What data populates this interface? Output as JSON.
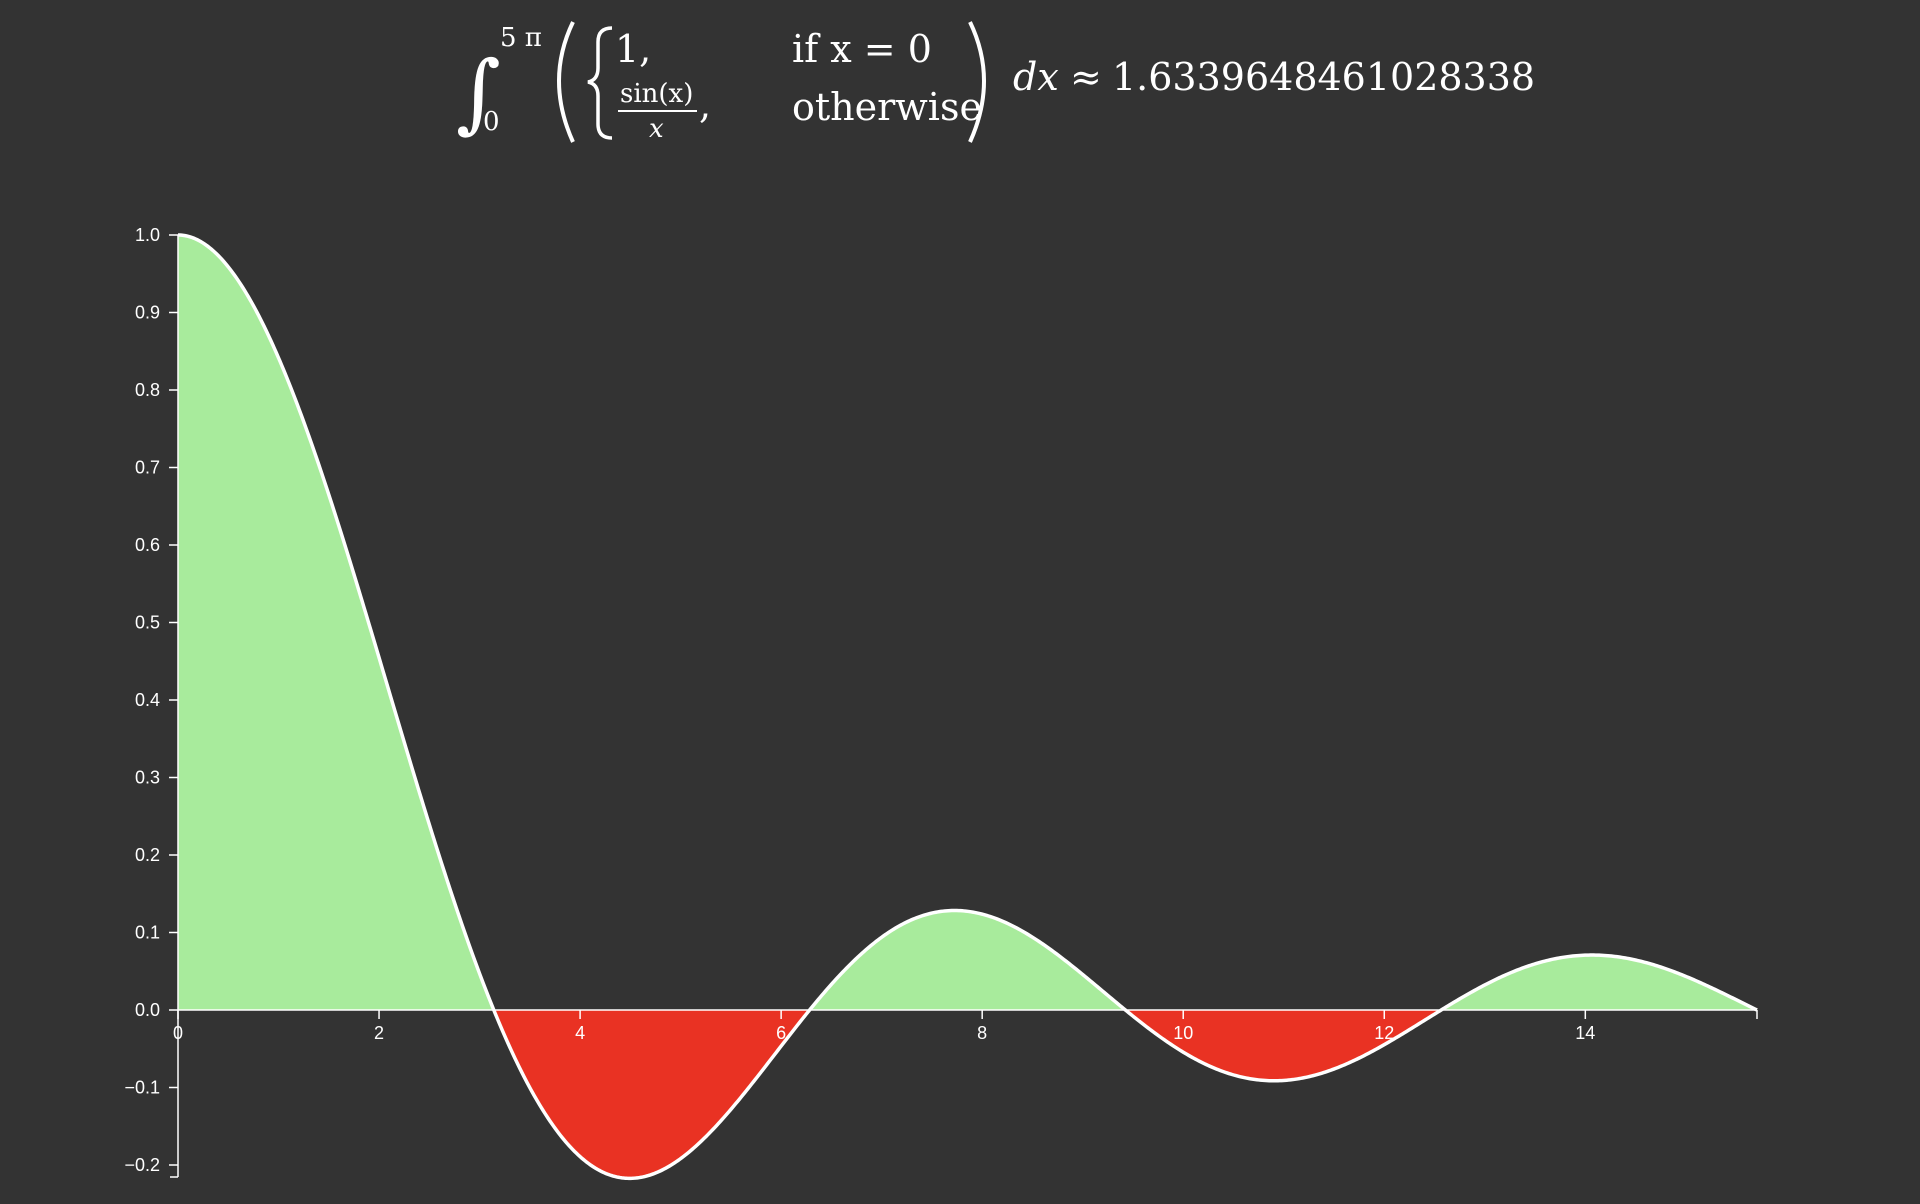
{
  "formula": {
    "integral_sign": "∫",
    "upper_limit": "5 π",
    "lower_limit": "0",
    "case1_value": "1,",
    "case1_condition": "if  x = 0",
    "case2_numerator": "sin(x)",
    "case2_denominator": "x",
    "case2_comma": ",",
    "case2_condition": "otherwise",
    "differential": "dx",
    "approx": "≈",
    "result": "1.6339648461028338"
  },
  "chart_data": {
    "type": "area",
    "function": "sin(x)/x (1 at x = 0)",
    "x_range": [
      0,
      15.707963267948966
    ],
    "ylim": [
      -0.2,
      1.0
    ],
    "x_ticks": [
      "0",
      "2",
      "4",
      "6",
      "8",
      "10",
      "12",
      "14"
    ],
    "x_tick_values": [
      0,
      2,
      4,
      6,
      8,
      10,
      12,
      14
    ],
    "y_ticks": [
      "1.0",
      "0.9",
      "0.8",
      "0.7",
      "0.6",
      "0.5",
      "0.4",
      "0.3",
      "0.2",
      "0.1",
      "0.0",
      "−0.1",
      "−0.2"
    ],
    "y_tick_values": [
      1.0,
      0.9,
      0.8,
      0.7,
      0.6,
      0.5,
      0.4,
      0.3,
      0.2,
      0.1,
      0.0,
      -0.1,
      -0.2
    ],
    "regions": [
      {
        "x": [
          0,
          3.1416
        ],
        "sign": "positive"
      },
      {
        "x": [
          3.1416,
          6.2832
        ],
        "sign": "negative"
      },
      {
        "x": [
          6.2832,
          9.4248
        ],
        "sign": "positive"
      },
      {
        "x": [
          9.4248,
          12.5664
        ],
        "sign": "negative"
      },
      {
        "x": [
          12.5664,
          15.708
        ],
        "sign": "positive"
      }
    ],
    "colors": {
      "positive": "#a8eb9c",
      "negative": "#e93223",
      "curve": "#ffffff",
      "background": "#333333",
      "axis": "#ffffff"
    }
  }
}
